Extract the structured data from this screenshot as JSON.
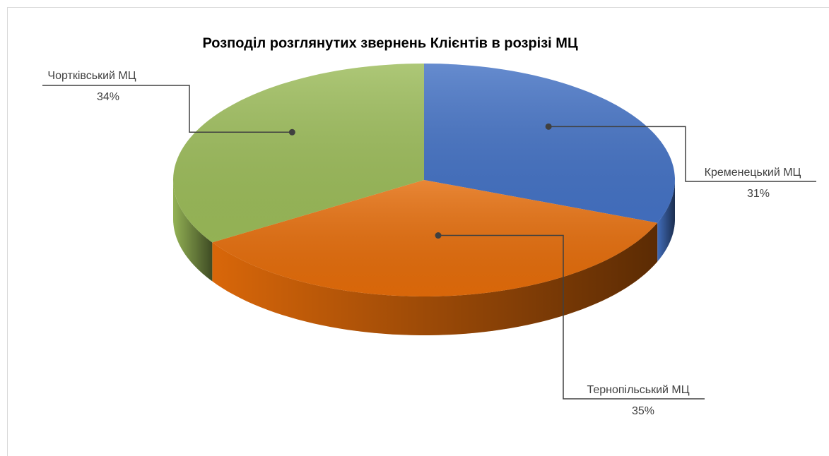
{
  "chart_data": {
    "type": "pie3d",
    "title": "Розподіл розглянутих звернень Клієнтів в розрізі МЦ",
    "categories": [
      "Кременецький МЦ",
      "Тернопільський МЦ",
      "Чортківський МЦ"
    ],
    "values": [
      31,
      35,
      34
    ],
    "value_labels": [
      "31%",
      "35%",
      "34%"
    ],
    "colors": [
      "#4472c4",
      "#e46c0a",
      "#9bbb59"
    ]
  }
}
